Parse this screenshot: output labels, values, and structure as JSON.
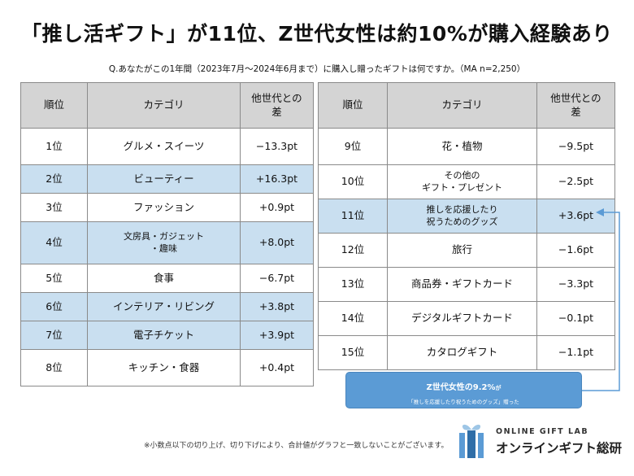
{
  "title": "「推し活ギフト」が11位、Z世代女性は約10%が購入経験あり",
  "question": "Q.あなたがこの1年間（2023年7月～2024年6月まで）に購入し贈ったギフトは何ですか。（MA n=2,250）",
  "headers": {
    "rank": "順位",
    "category": "カテゴリ",
    "diff_line1": "他世代との",
    "diff_line2": "差"
  },
  "chart_data": {
    "type": "table",
    "columns": [
      "順位",
      "カテゴリ",
      "他世代との差"
    ],
    "rows": [
      {
        "rank": "1位",
        "category": "グルメ・スイーツ",
        "category_line2": "",
        "diff": "−13.3pt",
        "value": -13.3,
        "highlight": false
      },
      {
        "rank": "2位",
        "category": "ビューティー",
        "category_line2": "",
        "diff": "+16.3pt",
        "value": 16.3,
        "highlight": true
      },
      {
        "rank": "3位",
        "category": "ファッション",
        "category_line2": "",
        "diff": "+0.9pt",
        "value": 0.9,
        "highlight": false
      },
      {
        "rank": "4位",
        "category": "文房具・ガジェット",
        "category_line2": "・趣味",
        "diff": "+8.0pt",
        "value": 8.0,
        "highlight": true
      },
      {
        "rank": "5位",
        "category": "食事",
        "category_line2": "",
        "diff": "−6.7pt",
        "value": -6.7,
        "highlight": false
      },
      {
        "rank": "6位",
        "category": "インテリア・リビング",
        "category_line2": "",
        "diff": "+3.8pt",
        "value": 3.8,
        "highlight": true
      },
      {
        "rank": "7位",
        "category": "電子チケット",
        "category_line2": "",
        "diff": "+3.9pt",
        "value": 3.9,
        "highlight": true
      },
      {
        "rank": "8位",
        "category": "キッチン・食器",
        "category_line2": "",
        "diff": "+0.4pt",
        "value": 0.4,
        "highlight": false
      },
      {
        "rank": "9位",
        "category": "花・植物",
        "category_line2": "",
        "diff": "−9.5pt",
        "value": -9.5,
        "highlight": false
      },
      {
        "rank": "10位",
        "category": "その他の",
        "category_line2": "ギフト・プレゼント",
        "diff": "−2.5pt",
        "value": -2.5,
        "highlight": false
      },
      {
        "rank": "11位",
        "category": "推しを応援したり",
        "category_line2": "祝うためのグッズ",
        "diff": "+3.6pt",
        "value": 3.6,
        "highlight": true
      },
      {
        "rank": "12位",
        "category": "旅行",
        "category_line2": "",
        "diff": "−1.6pt",
        "value": -1.6,
        "highlight": false
      },
      {
        "rank": "13位",
        "category": "商品券・ギフトカード",
        "category_line2": "",
        "diff": "−3.3pt",
        "value": -3.3,
        "highlight": false
      },
      {
        "rank": "14位",
        "category": "デジタルギフトカード",
        "category_line2": "",
        "diff": "−0.1pt",
        "value": -0.1,
        "highlight": false
      },
      {
        "rank": "15位",
        "category": "カタログギフト",
        "category_line2": "",
        "diff": "−1.1pt",
        "value": -1.1,
        "highlight": false
      }
    ]
  },
  "callout": {
    "line1_a": "Z世代女性の",
    "line1_b": "9.2%",
    "line1_c": "が",
    "line2": "「推しを応援したり祝うためのグッズ」贈った"
  },
  "note": "※小数点以下の切り上げ、切り下げにより、合計値がグラフと一致しないことがございます。",
  "logo": {
    "en": "ONLINE GIFT LAB",
    "jp": "オンラインギフト総研",
    "icon": "gift-box-icon"
  },
  "colors": {
    "highlight": "#c9dff0",
    "header": "#d4d4d4",
    "callout": "#5b9bd5",
    "connector": "#5b9bd5"
  }
}
